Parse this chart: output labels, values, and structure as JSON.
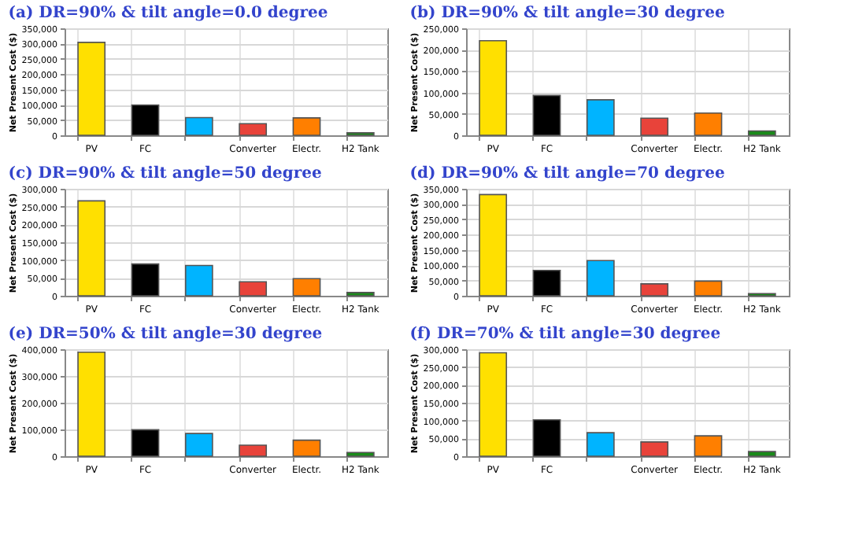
{
  "chart_data": [
    {
      "type": "bar",
      "title": "(a) DR=90% & tilt angle=0.0 degree",
      "ylabel": "Net Present Cost ($)",
      "categories": [
        "PV",
        "FC",
        null,
        "Converter",
        "Electr.",
        "H2 Tank"
      ],
      "values": [
        304000,
        99000,
        58000,
        38000,
        57000,
        8000
      ],
      "colors": [
        "#ffe000",
        "#000000",
        "#00b4ff",
        "#e8433a",
        "#ff7f00",
        "#1a8a1a"
      ],
      "ylim": [
        0,
        350000
      ],
      "yticks": [
        0,
        {
          "value": 50000,
          "label": "50,000"
        },
        {
          "value": 100000,
          "label": "100,000"
        },
        {
          "value": 150000,
          "label": "150,000"
        },
        {
          "value": 200000,
          "label": "200,000"
        },
        {
          "value": 250000,
          "label": "250,000"
        },
        {
          "value": 300000,
          "label": "300,000"
        },
        {
          "value": 350000,
          "label": "350,000"
        }
      ],
      "grid": true
    },
    {
      "type": "bar",
      "title": "(b) DR=90% & tilt angle=30 degree",
      "ylabel": "Net Present Cost ($)",
      "categories": [
        "PV",
        "FC",
        null,
        "Converter",
        "Electr.",
        "H2 Tank"
      ],
      "values": [
        221000,
        93000,
        83000,
        40000,
        52000,
        10000
      ],
      "colors": [
        "#ffe000",
        "#000000",
        "#00b4ff",
        "#e8433a",
        "#ff7f00",
        "#1a8a1a"
      ],
      "ylim": [
        0,
        250000
      ],
      "yticks": [
        0,
        {
          "value": 50000,
          "label": "50,000"
        },
        {
          "value": 100000,
          "label": "100,000"
        },
        {
          "value": 150000,
          "label": "150,000"
        },
        {
          "value": 200000,
          "label": "200,000"
        },
        {
          "value": 250000,
          "label": "250,000"
        }
      ],
      "grid": true
    },
    {
      "type": "bar",
      "title": "(c) DR=90% & tilt angle=50 degree",
      "ylabel": "Net Present Cost ($)",
      "categories": [
        "PV",
        "FC",
        null,
        "Converter",
        "Electr.",
        "H2 Tank"
      ],
      "values": [
        266000,
        89000,
        85000,
        39000,
        48000,
        9000
      ],
      "colors": [
        "#ffe000",
        "#000000",
        "#00b4ff",
        "#e8433a",
        "#ff7f00",
        "#1a8a1a"
      ],
      "ylim": [
        0,
        300000
      ],
      "yticks": [
        0,
        {
          "value": 50000,
          "label": "50,000"
        },
        {
          "value": 100000,
          "label": "100,000"
        },
        {
          "value": 150000,
          "label": "150,000"
        },
        {
          "value": 200000,
          "label": "200,000"
        },
        {
          "value": 250000,
          "label": "250,000"
        },
        {
          "value": 300000,
          "label": "300,000"
        }
      ],
      "grid": true
    },
    {
      "type": "bar",
      "title": "(d) DR=90% & tilt angle=70 degree",
      "ylabel": "Net Present Cost ($)",
      "categories": [
        "PV",
        "FC",
        null,
        "Converter",
        "Electr.",
        "H2 Tank"
      ],
      "values": [
        331000,
        83000,
        115000,
        39000,
        48000,
        7000
      ],
      "colors": [
        "#ffe000",
        "#000000",
        "#00b4ff",
        "#e8433a",
        "#ff7f00",
        "#1a8a1a"
      ],
      "ylim": [
        0,
        350000
      ],
      "yticks": [
        0,
        {
          "value": 50000,
          "label": "50,000"
        },
        {
          "value": 100000,
          "label": "100,000"
        },
        {
          "value": 150000,
          "label": "150,000"
        },
        {
          "value": 200000,
          "label": "200,000"
        },
        {
          "value": 250000,
          "label": "250,000"
        },
        {
          "value": 300000,
          "label": "300,000"
        },
        {
          "value": 350000,
          "label": "350,000"
        }
      ],
      "grid": true
    },
    {
      "type": "bar",
      "title": "(e) DR=50% & tilt angle=30 degree",
      "ylabel": "Net Present Cost ($)",
      "categories": [
        "PV",
        "FC",
        null,
        "Converter",
        "Electr.",
        "H2 Tank"
      ],
      "values": [
        389000,
        99000,
        85000,
        41000,
        60000,
        14000
      ],
      "colors": [
        "#ffe000",
        "#000000",
        "#00b4ff",
        "#e8433a",
        "#ff7f00",
        "#1a8a1a"
      ],
      "ylim": [
        0,
        400000
      ],
      "yticks": [
        0,
        {
          "value": 100000,
          "label": "100,000"
        },
        {
          "value": 200000,
          "label": "200,000"
        },
        {
          "value": 300000,
          "label": "300,000"
        },
        {
          "value": 400000,
          "label": "400,000"
        }
      ],
      "grid": true
    },
    {
      "type": "bar",
      "title": "(f) DR=70% & tilt angle=30 degree",
      "ylabel": "Net Present Cost ($)",
      "categories": [
        "PV",
        "FC",
        null,
        "Converter",
        "Electr.",
        "H2 Tank"
      ],
      "values": [
        290000,
        102000,
        66000,
        40000,
        57000,
        13000
      ],
      "colors": [
        "#ffe000",
        "#000000",
        "#00b4ff",
        "#e8433a",
        "#ff7f00",
        "#1a8a1a"
      ],
      "ylim": [
        0,
        300000
      ],
      "yticks": [
        0,
        {
          "value": 50000,
          "label": "50,000"
        },
        {
          "value": 100000,
          "label": "100,000"
        },
        {
          "value": 150000,
          "label": "150,000"
        },
        {
          "value": 200000,
          "label": "200,000"
        },
        {
          "value": 250000,
          "label": "250,000"
        },
        {
          "value": 300000,
          "label": "300,000"
        }
      ],
      "grid": true
    }
  ]
}
